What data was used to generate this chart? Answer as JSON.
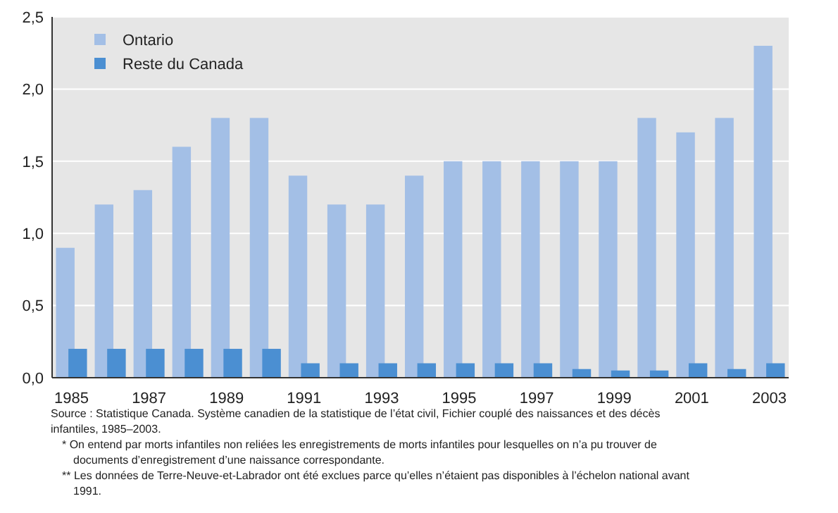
{
  "chart_data": {
    "type": "bar",
    "categories": [
      "1985",
      null,
      "1987",
      null,
      "1989",
      null,
      "1991",
      null,
      "1993",
      null,
      "1995",
      null,
      "1997",
      null,
      "1999",
      null,
      "2001",
      null,
      "2003"
    ],
    "series": [
      {
        "name": "Ontario",
        "color": "#a3bfe6",
        "values": [
          0.9,
          1.2,
          1.3,
          1.6,
          1.8,
          1.8,
          1.4,
          1.2,
          1.2,
          1.4,
          1.5,
          1.5,
          1.5,
          1.5,
          1.5,
          1.8,
          1.7,
          1.8,
          2.3
        ]
      },
      {
        "name": "Reste du Canada",
        "color": "#4b8fd2",
        "values": [
          0.2,
          0.2,
          0.2,
          0.2,
          0.2,
          0.2,
          0.1,
          0.1,
          0.1,
          0.1,
          0.1,
          0.1,
          0.1,
          0.06,
          0.05,
          0.05,
          0.1,
          0.06,
          0.1
        ]
      }
    ],
    "ylim": [
      0,
      2.5
    ],
    "yticks": [
      {
        "value": 0,
        "label": "0,0"
      },
      {
        "value": 0.5,
        "label": "0,5"
      },
      {
        "value": 1,
        "label": "1,0"
      },
      {
        "value": 1.5,
        "label": "1,5"
      },
      {
        "value": 2,
        "label": "2,0"
      },
      {
        "value": 2.5,
        "label": "2,5"
      }
    ],
    "grid": "y",
    "legend": "top left",
    "annotations": [
      "Source : Statistique Canada. Système canadien de la statistique de l’état civil, Fichier couplé des naissances et des décès infantiles, 1985–2003.",
      "* On entend par morts infantiles non reliées les enregistrements de morts infantiles pour lesquelles on n’a pu trouver de documents d’enregistrement d’une naissance correspondante.",
      "** Les données de Terre-Neuve-et-Labrador ont été exclues parce qu’elles n’étaient pas disponibles à l’échelon national avant 1991."
    ]
  }
}
